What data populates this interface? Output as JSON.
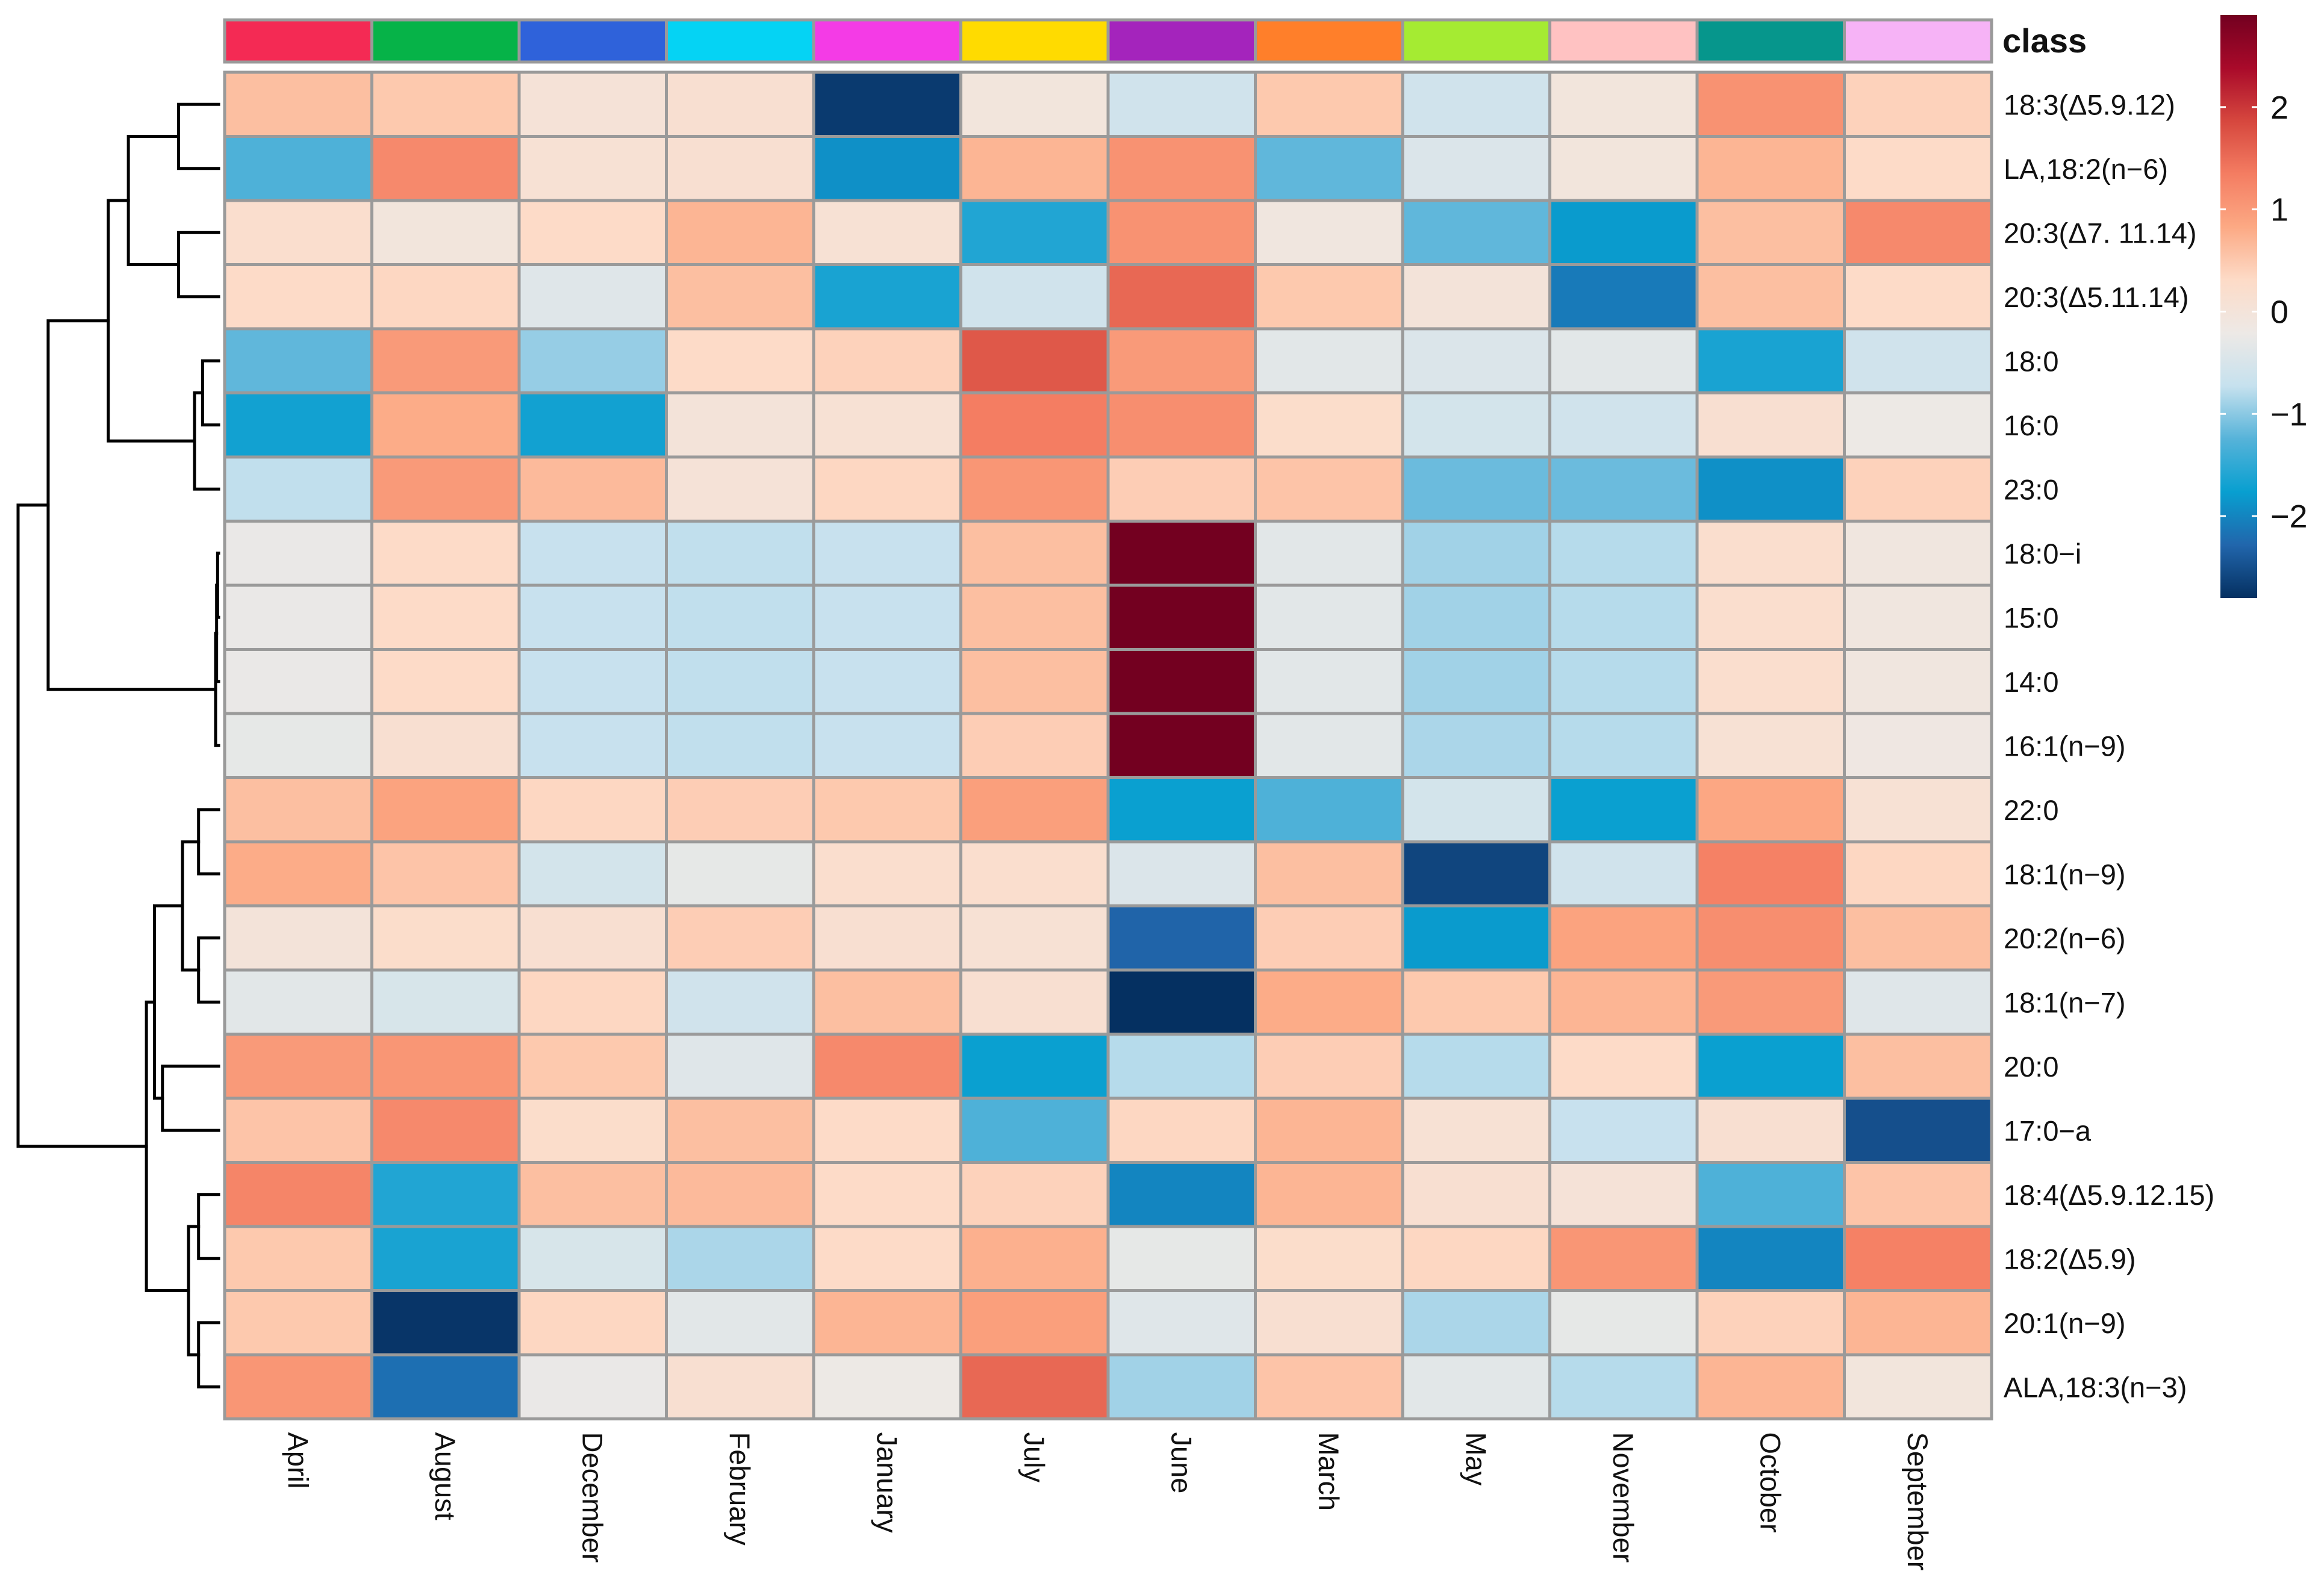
{
  "chart_data": {
    "type": "heatmap",
    "annotation_title": "class",
    "columns": [
      "April",
      "August",
      "December",
      "February",
      "January",
      "July",
      "June",
      "March",
      "May",
      "November",
      "October",
      "September"
    ],
    "column_colors": [
      "#F42A54",
      "#06B348",
      "#2F62DA",
      "#05D3F4",
      "#F43BE6",
      "#FFDB00",
      "#A424BC",
      "#FF7F2A",
      "#A5EB32",
      "#FFC2C2",
      "#06968C",
      "#F6B3F6"
    ],
    "rows": [
      "18:3(Δ5.9.12)",
      "LA,18:2(n−6)",
      "20:3(Δ7. 11.14)",
      "20:3(Δ5.11.14)",
      "18:0",
      "16:0",
      "23:0",
      "18:0−i",
      "15:0",
      "14:0",
      "16:1(n−9)",
      "22:0",
      "18:1(n−9)",
      "20:2(n−6)",
      "18:1(n−7)",
      "20:0",
      "17:0−a",
      "18:4(Δ5.9.12.15)",
      "18:2(Δ5.9)",
      "20:1(n−9)",
      "ALA,18:3(n−3)"
    ],
    "values": [
      [
        0.6,
        0.5,
        0.05,
        0.15,
        -2.7,
        -0.05,
        -0.6,
        0.5,
        -0.6,
        -0.05,
        1.1,
        0.4
      ],
      [
        -1.3,
        1.2,
        0.1,
        0.15,
        -1.9,
        0.7,
        1.1,
        -1.2,
        -0.45,
        -0.05,
        0.7,
        0.3
      ],
      [
        0.2,
        -0.05,
        0.3,
        0.7,
        0.1,
        -1.6,
        1.1,
        -0.1,
        -1.2,
        -1.8,
        0.6,
        1.2
      ],
      [
        0.3,
        0.35,
        -0.4,
        0.6,
        -1.65,
        -0.6,
        1.55,
        0.5,
        0.0,
        -2.1,
        0.6,
        0.3
      ],
      [
        -1.2,
        1.0,
        -0.95,
        0.3,
        0.4,
        1.7,
        1.0,
        -0.35,
        -0.45,
        -0.35,
        -1.65,
        -0.6
      ],
      [
        -1.7,
        0.8,
        -1.7,
        0.0,
        0.1,
        1.35,
        1.15,
        0.25,
        -0.55,
        -0.6,
        0.15,
        -0.2
      ],
      [
        -0.75,
        1.0,
        0.65,
        0.05,
        0.35,
        1.05,
        0.45,
        0.55,
        -1.15,
        -1.15,
        -1.9,
        0.4
      ],
      [
        -0.25,
        0.3,
        -0.7,
        -0.75,
        -0.7,
        0.6,
        2.9,
        -0.35,
        -0.9,
        -0.8,
        0.2,
        -0.1
      ],
      [
        -0.25,
        0.3,
        -0.7,
        -0.75,
        -0.7,
        0.6,
        2.9,
        -0.35,
        -0.9,
        -0.8,
        0.2,
        -0.1
      ],
      [
        -0.25,
        0.3,
        -0.7,
        -0.75,
        -0.7,
        0.6,
        2.9,
        -0.35,
        -0.9,
        -0.8,
        0.2,
        -0.1
      ],
      [
        -0.3,
        0.15,
        -0.7,
        -0.75,
        -0.7,
        0.45,
        2.95,
        -0.35,
        -0.85,
        -0.8,
        0.1,
        -0.15
      ],
      [
        0.6,
        0.9,
        0.35,
        0.45,
        0.5,
        0.95,
        -1.75,
        -1.3,
        -0.55,
        -1.75,
        0.85,
        0.1
      ],
      [
        0.8,
        0.55,
        -0.55,
        -0.3,
        0.2,
        0.2,
        -0.45,
        0.6,
        -2.6,
        -0.6,
        1.3,
        0.35
      ],
      [
        0.0,
        0.25,
        0.15,
        0.45,
        0.15,
        0.1,
        -2.3,
        0.45,
        -1.8,
        0.9,
        1.15,
        0.6
      ],
      [
        -0.35,
        -0.5,
        0.35,
        -0.6,
        0.6,
        0.15,
        -2.9,
        0.8,
        0.5,
        0.7,
        1.0,
        -0.4
      ],
      [
        1.0,
        1.05,
        0.5,
        -0.4,
        1.2,
        -1.75,
        -0.8,
        0.45,
        -0.8,
        0.3,
        -1.75,
        0.6
      ],
      [
        0.55,
        1.2,
        0.25,
        0.6,
        0.3,
        -1.3,
        0.35,
        0.7,
        0.1,
        -0.7,
        0.15,
        -2.5
      ],
      [
        1.25,
        -1.6,
        0.6,
        0.65,
        0.3,
        0.4,
        -2.0,
        0.7,
        0.15,
        0.05,
        -1.3,
        0.55
      ],
      [
        0.5,
        -1.65,
        -0.5,
        -0.85,
        0.3,
        0.75,
        -0.3,
        0.25,
        0.35,
        1.05,
        -2.0,
        1.3
      ],
      [
        0.5,
        -2.75,
        0.35,
        -0.35,
        0.7,
        0.95,
        -0.4,
        0.15,
        -0.85,
        -0.3,
        0.4,
        0.7
      ],
      [
        1.05,
        -2.2,
        -0.25,
        0.15,
        -0.2,
        1.55,
        -0.9,
        0.55,
        -0.35,
        -0.8,
        0.7,
        -0.05
      ]
    ],
    "color_scale": {
      "min": -2.8,
      "max": 2.9,
      "colors": [
        "#053061",
        "#2166ac",
        "#089fd0",
        "#56b3d9",
        "#c6e1ee",
        "#ede9e6",
        "#fddbc7",
        "#fca984",
        "#f47d62",
        "#d6473e",
        "#a90a2a",
        "#730020"
      ],
      "ticks": [
        2,
        1,
        0,
        -1,
        -2
      ],
      "tick_labels": [
        "2",
        "1",
        "0",
        "−1",
        "−2"
      ]
    },
    "row_dendrogram": true,
    "legend_position": "top-right"
  }
}
